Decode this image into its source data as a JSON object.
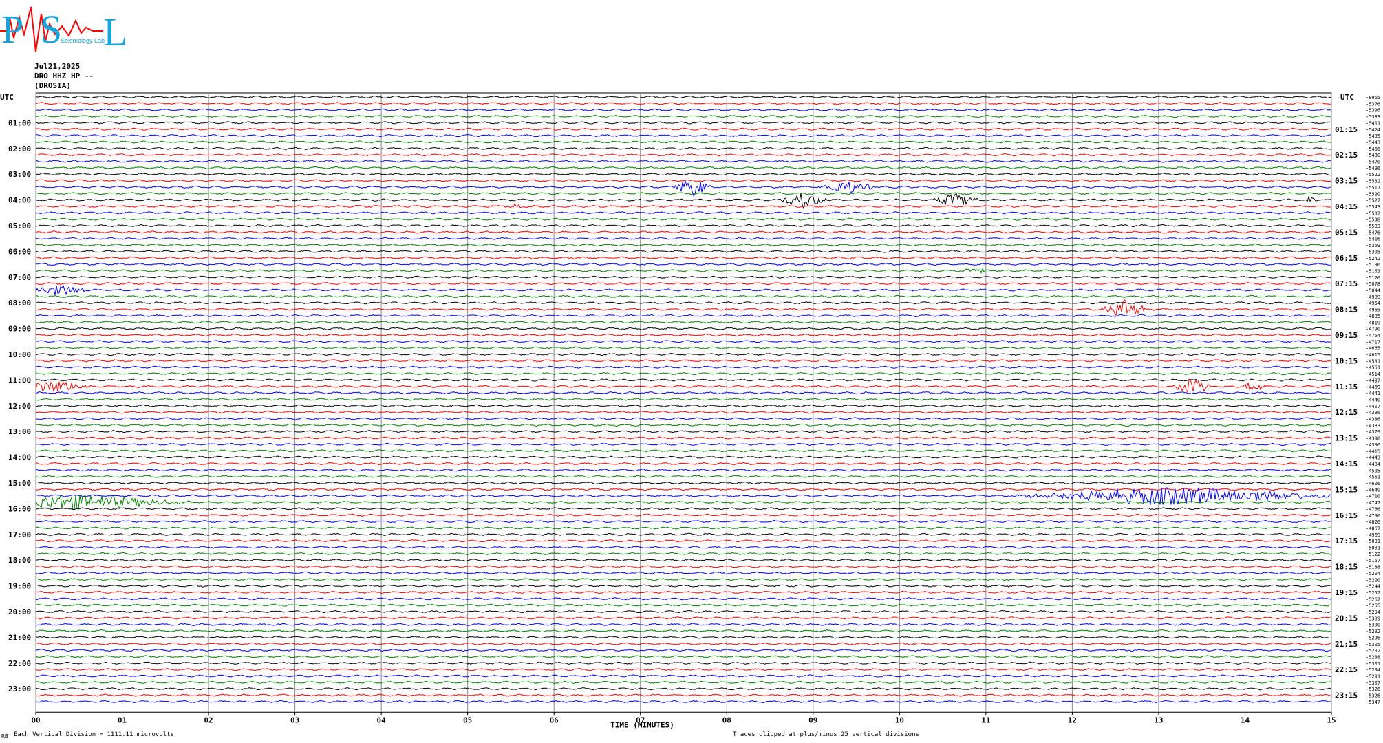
{
  "logo": {
    "big_letters": [
      "P",
      "S",
      "L"
    ],
    "small_text": "Seismology Lab"
  },
  "header": {
    "date": "Jul21,2025",
    "station": "DRO HHZ HP --",
    "location": "(DROSIA)"
  },
  "chart_data": {
    "type": "line",
    "title": "",
    "xlabel": "TIME (MINUTES)",
    "xlim": [
      0,
      15
    ],
    "x_ticks": [
      "00",
      "01",
      "02",
      "03",
      "04",
      "05",
      "06",
      "07",
      "08",
      "09",
      "10",
      "11",
      "12",
      "13",
      "14",
      "15"
    ],
    "left_axis_label": "UTC",
    "right_axis_label": "UTC",
    "left_hour_labels": [
      "01:00",
      "02:00",
      "03:00",
      "04:00",
      "05:00",
      "06:00",
      "07:00",
      "08:00",
      "09:00",
      "10:00",
      "11:00",
      "12:00",
      "13:00",
      "14:00",
      "15:00",
      "16:00",
      "17:00",
      "18:00",
      "19:00",
      "20:00",
      "21:00",
      "22:00",
      "23:00"
    ],
    "right_hour_labels": [
      "01:15",
      "02:15",
      "03:15",
      "04:15",
      "05:15",
      "06:15",
      "07:15",
      "08:15",
      "09:15",
      "10:15",
      "11:15",
      "12:15",
      "13:15",
      "14:15",
      "15:15",
      "16:15",
      "17:15",
      "18:15",
      "19:15",
      "20:15",
      "21:15",
      "22:15",
      "23:15"
    ],
    "trace_count": 96,
    "trace_minutes": 15,
    "trace_colors": [
      "#000000",
      "#ff0000",
      "#0000ff",
      "#008000"
    ],
    "offsets": [
      "-8955",
      "-5376",
      "-5396",
      "-5383",
      "-5401",
      "-5424",
      "-5435",
      "-5443",
      "-5466",
      "-5480",
      "-5470",
      "-5496",
      "-5522",
      "-5532",
      "-5517",
      "-5520",
      "-5527",
      "-5543",
      "-5537",
      "-5538",
      "-5503",
      "-5476",
      "-5416",
      "-5359",
      "-5305",
      "-5242",
      "-5196",
      "-5163",
      "-5120",
      "-5078",
      "-5044",
      "-4989",
      "-4954",
      "-4965",
      "-4885",
      "-4819",
      "-4790",
      "-4754",
      "-4717",
      "-4665",
      "-4615",
      "-4581",
      "-4551",
      "-4514",
      "-4497",
      "-4469",
      "-4441",
      "-4440",
      "-4407",
      "-4396",
      "-4386",
      "-4383",
      "-4379",
      "-4390",
      "-4396",
      "-4415",
      "-4443",
      "-4484",
      "-4505",
      "-4561",
      "-4606",
      "-4649",
      "-4710",
      "-4747",
      "-4766",
      "-4790",
      "-4826",
      "-4867",
      "-4969",
      "-5031",
      "-5081",
      "-5122",
      "-5157",
      "-5188",
      "-5204",
      "-5220",
      "-5244",
      "-5252",
      "-5262",
      "-5255",
      "-5294",
      "-5309",
      "-5300",
      "-5292",
      "-5296",
      "-5305",
      "-5292",
      "-5288",
      "-5301",
      "-5294",
      "-5291",
      "-5307",
      "-5326",
      "-5326",
      "-5347",
      ""
    ],
    "events": [
      {
        "trace": 14,
        "minute": 7.6,
        "amp": 14,
        "width": 0.25
      },
      {
        "trace": 16,
        "minute": 8.9,
        "amp": 13,
        "width": 0.3
      },
      {
        "trace": 14,
        "minute": 9.4,
        "amp": 9,
        "width": 0.4
      },
      {
        "trace": 16,
        "minute": 10.65,
        "amp": 10,
        "width": 0.3
      },
      {
        "trace": 16,
        "minute": 14.75,
        "amp": 5,
        "width": 0.1
      },
      {
        "trace": 17,
        "minute": 5.5,
        "amp": 3,
        "width": 0.3
      },
      {
        "trace": 30,
        "minute": 0.25,
        "amp": 8,
        "width": 0.5
      },
      {
        "trace": 33,
        "minute": 12.6,
        "amp": 13,
        "width": 0.3
      },
      {
        "trace": 45,
        "minute": 0.2,
        "amp": 10,
        "width": 0.5
      },
      {
        "trace": 45,
        "minute": 13.4,
        "amp": 12,
        "width": 0.25
      },
      {
        "trace": 45,
        "minute": 14.1,
        "amp": 9,
        "width": 0.15
      },
      {
        "trace": 63,
        "minute": 0.4,
        "amp": 12,
        "width": 1.5
      },
      {
        "trace": 62,
        "minute": 13.2,
        "amp": 14,
        "width": 2.0
      },
      {
        "trace": 27,
        "minute": 10.9,
        "amp": 4,
        "width": 0.2
      }
    ]
  },
  "footer": {
    "left_mark": "RB",
    "scale": "Each Vertical Division = 1111.11 microvolts",
    "clip": "Traces clipped at plus/minus 25 vertical divisions"
  }
}
